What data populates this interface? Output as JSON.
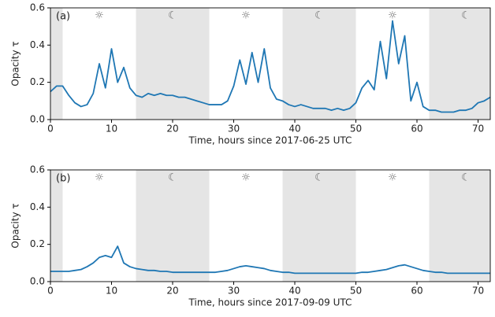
{
  "chart_data": [
    {
      "type": "line",
      "panel_label": "(a)",
      "xlabel": "Time, hours since 2017-06-25 UTC",
      "ylabel": "Opacity τ",
      "xlim": [
        0,
        72
      ],
      "ylim": [
        0,
        0.6
      ],
      "xticks": [
        0,
        10,
        20,
        30,
        40,
        50,
        60,
        70
      ],
      "yticks": [
        {
          "value": 0,
          "label": "0.0"
        },
        0.2,
        0.4,
        0.6
      ],
      "color": "#1f77b4",
      "shaded": [
        [
          0,
          2
        ],
        [
          14,
          26
        ],
        [
          38,
          50
        ],
        [
          62,
          72
        ]
      ],
      "annotations": [
        {
          "text": "☼",
          "x": 8
        },
        {
          "text": "☾",
          "x": 20
        },
        {
          "text": "☼",
          "x": 32
        },
        {
          "text": "☾",
          "x": 44
        },
        {
          "text": "☼",
          "x": 56
        },
        {
          "text": "☾",
          "x": 68
        }
      ],
      "x": [
        0,
        1,
        2,
        3,
        4,
        5,
        6,
        7,
        8,
        9,
        10,
        11,
        12,
        13,
        14,
        15,
        16,
        17,
        18,
        19,
        20,
        21,
        22,
        23,
        24,
        25,
        26,
        27,
        28,
        29,
        30,
        31,
        32,
        33,
        34,
        35,
        36,
        37,
        38,
        39,
        40,
        41,
        42,
        43,
        44,
        45,
        46,
        47,
        48,
        49,
        50,
        51,
        52,
        53,
        54,
        55,
        56,
        57,
        58,
        59,
        60,
        61,
        62,
        63,
        64,
        65,
        66,
        67,
        68,
        69,
        70,
        71,
        72
      ],
      "values": [
        0.15,
        0.18,
        0.18,
        0.13,
        0.09,
        0.07,
        0.08,
        0.14,
        0.3,
        0.17,
        0.38,
        0.2,
        0.28,
        0.17,
        0.13,
        0.12,
        0.14,
        0.13,
        0.14,
        0.13,
        0.13,
        0.12,
        0.12,
        0.11,
        0.1,
        0.09,
        0.08,
        0.08,
        0.08,
        0.1,
        0.18,
        0.32,
        0.19,
        0.36,
        0.2,
        0.38,
        0.17,
        0.11,
        0.1,
        0.08,
        0.07,
        0.08,
        0.07,
        0.06,
        0.06,
        0.06,
        0.05,
        0.06,
        0.05,
        0.06,
        0.09,
        0.17,
        0.21,
        0.16,
        0.42,
        0.22,
        0.53,
        0.3,
        0.45,
        0.1,
        0.2,
        0.07,
        0.05,
        0.05,
        0.04,
        0.04,
        0.04,
        0.05,
        0.05,
        0.06,
        0.09,
        0.1,
        0.12
      ]
    },
    {
      "type": "line",
      "panel_label": "(b)",
      "xlabel": "Time, hours since 2017-09-09 UTC",
      "ylabel": "Opacity τ",
      "xlim": [
        0,
        72
      ],
      "ylim": [
        0,
        0.6
      ],
      "xticks": [
        0,
        10,
        20,
        30,
        40,
        50,
        60,
        70
      ],
      "yticks": [
        {
          "value": 0,
          "label": "0.0"
        },
        0.2,
        0.4,
        0.6
      ],
      "color": "#1f77b4",
      "shaded": [
        [
          0,
          2
        ],
        [
          14,
          26
        ],
        [
          38,
          50
        ],
        [
          62,
          72
        ]
      ],
      "annotations": [
        {
          "text": "☼",
          "x": 8
        },
        {
          "text": "☾",
          "x": 20
        },
        {
          "text": "☼",
          "x": 32
        },
        {
          "text": "☾",
          "x": 44
        },
        {
          "text": "☼",
          "x": 56
        },
        {
          "text": "☾",
          "x": 68
        }
      ],
      "x": [
        0,
        1,
        2,
        3,
        4,
        5,
        6,
        7,
        8,
        9,
        10,
        11,
        12,
        13,
        14,
        15,
        16,
        17,
        18,
        19,
        20,
        21,
        22,
        23,
        24,
        25,
        26,
        27,
        28,
        29,
        30,
        31,
        32,
        33,
        34,
        35,
        36,
        37,
        38,
        39,
        40,
        41,
        42,
        43,
        44,
        45,
        46,
        47,
        48,
        49,
        50,
        51,
        52,
        53,
        54,
        55,
        56,
        57,
        58,
        59,
        60,
        61,
        62,
        63,
        64,
        65,
        66,
        67,
        68,
        69,
        70,
        71,
        72
      ],
      "values": [
        0.055,
        0.055,
        0.055,
        0.055,
        0.06,
        0.065,
        0.08,
        0.1,
        0.13,
        0.14,
        0.13,
        0.19,
        0.1,
        0.08,
        0.07,
        0.065,
        0.06,
        0.06,
        0.055,
        0.055,
        0.05,
        0.05,
        0.05,
        0.05,
        0.05,
        0.05,
        0.05,
        0.05,
        0.055,
        0.06,
        0.07,
        0.08,
        0.085,
        0.08,
        0.075,
        0.07,
        0.06,
        0.055,
        0.05,
        0.05,
        0.045,
        0.045,
        0.045,
        0.045,
        0.045,
        0.045,
        0.045,
        0.045,
        0.045,
        0.045,
        0.045,
        0.05,
        0.05,
        0.055,
        0.06,
        0.065,
        0.075,
        0.085,
        0.09,
        0.08,
        0.07,
        0.06,
        0.055,
        0.05,
        0.05,
        0.045,
        0.045,
        0.045,
        0.045,
        0.045,
        0.045,
        0.045,
        0.045
      ]
    }
  ]
}
